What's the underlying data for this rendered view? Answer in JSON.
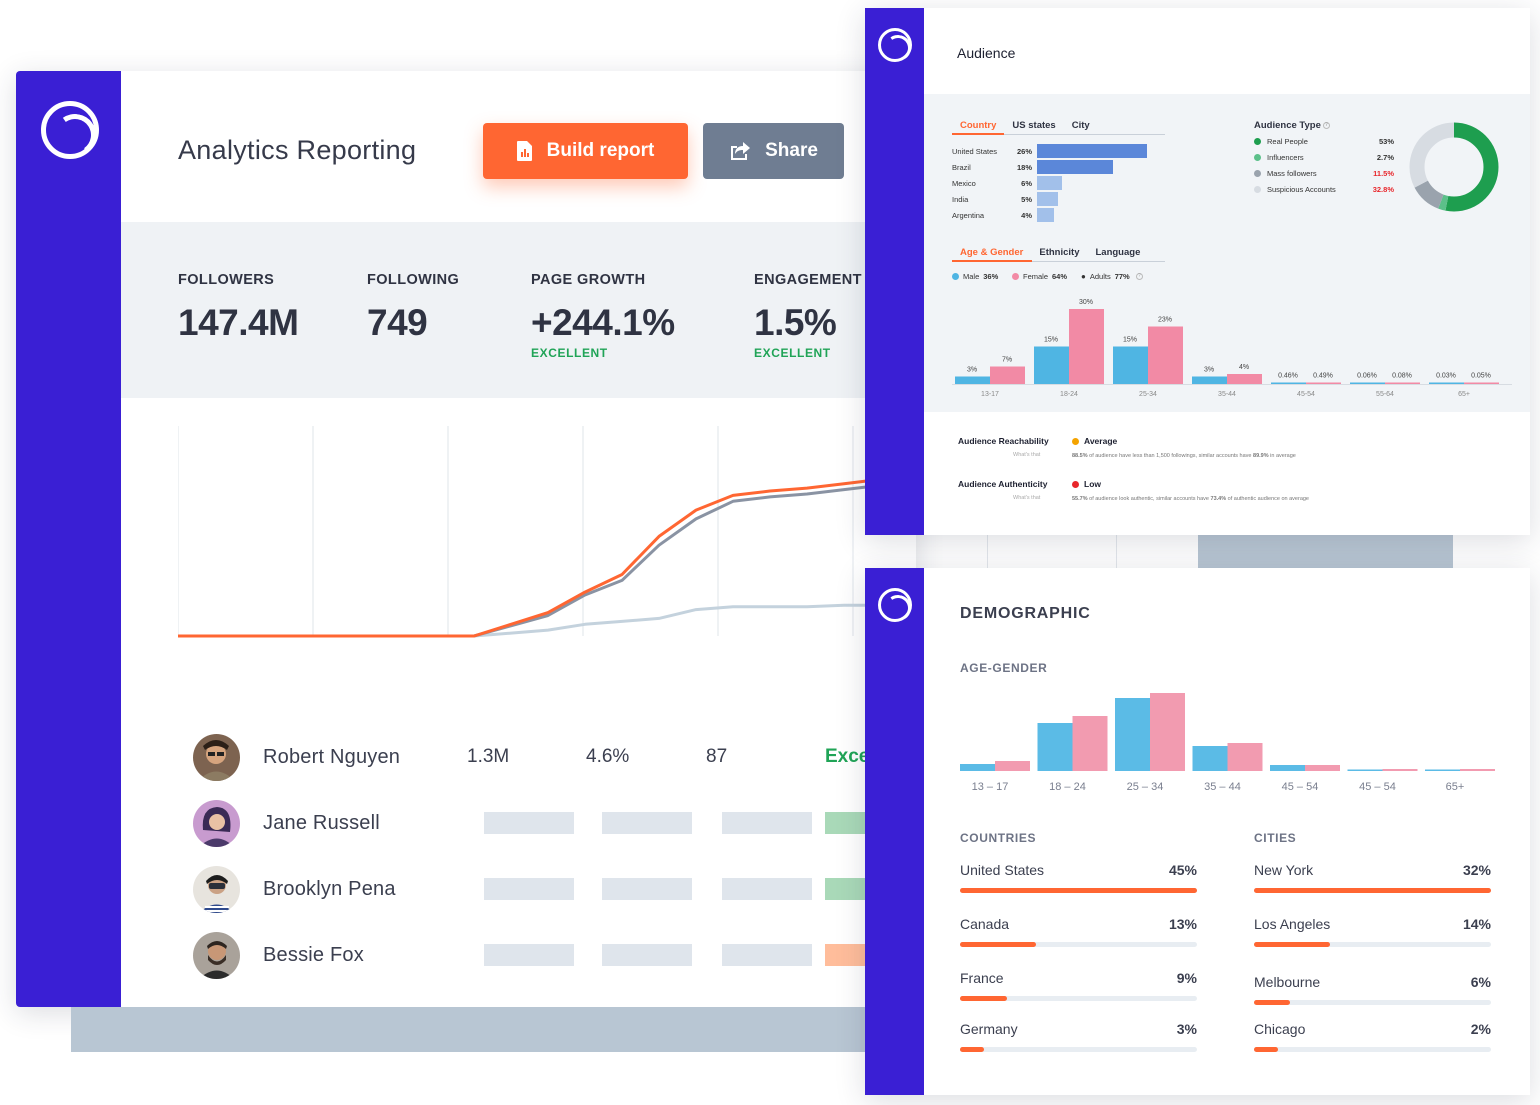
{
  "main": {
    "title": "Analytics Reporting",
    "build_label": "Build report",
    "share_label": "Share",
    "stats": [
      {
        "label": "FOLLOWERS",
        "value": "147.4M",
        "tag": ""
      },
      {
        "label": "FOLLOWING",
        "value": "749",
        "tag": ""
      },
      {
        "label": "PAGE GROWTH",
        "value": "+244.1%",
        "tag": "EXCELLENT"
      },
      {
        "label": "ENGAGEMENT",
        "value": "1.5%",
        "tag": "EXCELLENT"
      }
    ],
    "influencers": [
      {
        "name": "Robert Nguyen",
        "followers": "1.3M",
        "engagement": "4.6%",
        "posts": "87",
        "rating": "Exce"
      },
      {
        "name": "Jane Russell",
        "rating_color": "#a9d9b8"
      },
      {
        "name": "Brooklyn Pena",
        "rating_color": "#a9d9b8"
      },
      {
        "name": "Bessie Fox",
        "rating_color": "#ffbd9b"
      }
    ]
  },
  "audience": {
    "title": "Audience",
    "tabs1": [
      "Country",
      "US states",
      "City"
    ],
    "countries": [
      {
        "name": "United States",
        "pct": "26%",
        "value": 26
      },
      {
        "name": "Brazil",
        "pct": "18%",
        "value": 18
      },
      {
        "name": "Mexico",
        "pct": "6%",
        "value": 6
      },
      {
        "name": "India",
        "pct": "5%",
        "value": 5
      },
      {
        "name": "Argentina",
        "pct": "4%",
        "value": 4
      }
    ],
    "type_title": "Audience Type",
    "types": [
      {
        "name": "Real People",
        "pct": "53%",
        "color": "#1e9e4f",
        "value": 53
      },
      {
        "name": "Influencers",
        "pct": "2.7%",
        "color": "#5cc08a",
        "value": 2.7
      },
      {
        "name": "Mass followers",
        "pct": "11.5%",
        "color": "#9aa3ad",
        "value": 11.5
      },
      {
        "name": "Suspicious Accounts",
        "pct": "32.8%",
        "color": "#d7dce2",
        "value": 32.8
      }
    ],
    "tabs2": [
      "Age & Gender",
      "Ethnicity",
      "Language"
    ],
    "legend": {
      "male": "Male",
      "male_pct": "36%",
      "female": "Female",
      "female_pct": "64%",
      "adults": "Adults",
      "adults_pct": "77%"
    },
    "age_groups": [
      {
        "range": "13-17",
        "male": 3,
        "female": 7,
        "male_lbl": "3%",
        "female_lbl": "7%"
      },
      {
        "range": "18-24",
        "male": 15,
        "female": 30,
        "male_lbl": "15%",
        "female_lbl": "30%"
      },
      {
        "range": "25-34",
        "male": 15,
        "female": 23,
        "male_lbl": "15%",
        "female_lbl": "23%"
      },
      {
        "range": "35-44",
        "male": 3,
        "female": 4,
        "male_lbl": "3%",
        "female_lbl": "4%"
      },
      {
        "range": "45-54",
        "male": 0.46,
        "female": 0.49,
        "male_lbl": "0.46%",
        "female_lbl": "0.49%"
      },
      {
        "range": "55-64",
        "male": 0.06,
        "female": 0.08,
        "male_lbl": "0.06%",
        "female_lbl": "0.08%"
      },
      {
        "range": "65+",
        "male": 0.03,
        "female": 0.05,
        "male_lbl": "0.03%",
        "female_lbl": "0.05%"
      }
    ],
    "reachability": {
      "label": "Audience Reachability",
      "sub": "What's that",
      "value": "Average",
      "color": "#f4a300",
      "desc_strong1": "88.5%",
      "desc1": " of audience have less than 1,500 followings, similar accounts have ",
      "desc_strong2": "89.9%",
      "desc2": " in average"
    },
    "authenticity": {
      "label": "Audience Authenticity",
      "sub": "What's that",
      "value": "Low",
      "color": "#e8262b",
      "desc_strong1": "55.7%",
      "desc1": " of audience look authentic, similar accounts have ",
      "desc_strong2": "73.4%",
      "desc2": " of authentic audience on average"
    }
  },
  "demographic": {
    "title": "DEMOGRAPHIC",
    "age_gender_label": "AGE-GENDER",
    "ranges": [
      "13 – 17",
      "18 – 24",
      "25 – 34",
      "35 – 44",
      "45 – 54",
      "45 – 54",
      "65+"
    ],
    "countries_label": "COUNTRIES",
    "cities_label": "CITIES",
    "countries": [
      {
        "name": "United States",
        "pct": "45%",
        "value": 100
      },
      {
        "name": "Canada",
        "pct": "13%",
        "value": 32
      },
      {
        "name": "France",
        "pct": "9%",
        "value": 20
      },
      {
        "name": "Germany",
        "pct": "3%",
        "value": 10
      }
    ],
    "cities": [
      {
        "name": "New York",
        "pct": "32%",
        "value": 100
      },
      {
        "name": "Los Angeles",
        "pct": "14%",
        "value": 32
      },
      {
        "name": "Melbourne",
        "pct": "6%",
        "value": 15
      },
      {
        "name": "Chicago",
        "pct": "2%",
        "value": 10
      }
    ]
  },
  "chart_data": [
    {
      "type": "line",
      "x": [
        0,
        1,
        2,
        3,
        4,
        5,
        6,
        7,
        8,
        9,
        10,
        11,
        12,
        13,
        14,
        15,
        16,
        17,
        18,
        19,
        20
      ],
      "series": [
        {
          "values": [
            0,
            0,
            0,
            0,
            0,
            0,
            0,
            0,
            0,
            8,
            16,
            30,
            42,
            68,
            86,
            96,
            99,
            101,
            104,
            107,
            110
          ],
          "color": "#ff6632"
        },
        {
          "values": [
            0,
            0,
            0,
            0,
            0,
            0,
            0,
            0,
            0,
            7,
            14,
            28,
            38,
            62,
            80,
            92,
            95,
            97,
            100,
            103,
            106
          ],
          "color": "#8a93a3"
        },
        {
          "values": [
            0,
            0,
            0,
            0,
            0,
            0,
            0,
            0,
            0,
            2,
            4,
            8,
            10,
            12,
            18,
            20,
            20,
            20,
            21,
            21,
            22
          ],
          "color": "#c4d2dd"
        }
      ],
      "ylim": [
        0,
        140
      ]
    },
    {
      "type": "bar",
      "categories": [
        "13 – 17",
        "18 – 24",
        "25 – 34",
        "35 – 44",
        "45 – 54",
        "45 – 54",
        "65+"
      ],
      "series": [
        {
          "values": [
            7,
            48,
            73,
            25,
            6,
            1,
            1
          ],
          "color": "#5bbbe6"
        },
        {
          "values": [
            10,
            55,
            78,
            28,
            6,
            2,
            2
          ],
          "color": "#f29bb0"
        }
      ]
    }
  ]
}
